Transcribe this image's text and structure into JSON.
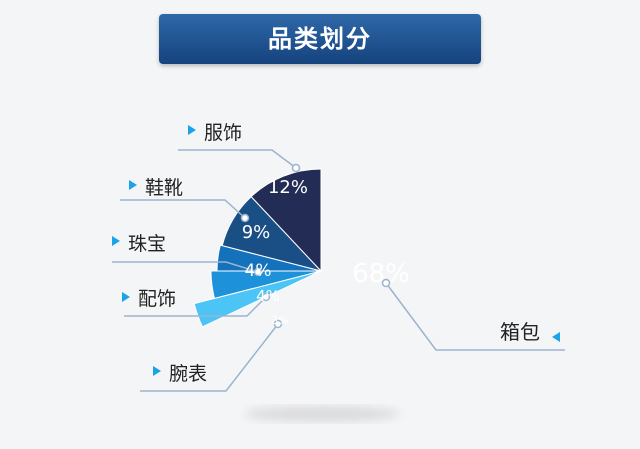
{
  "chart_data": {
    "type": "pie",
    "title": "品类划分",
    "slices": [
      {
        "name": "箱包",
        "value": 68,
        "label": "68%",
        "color": "#16a3e6"
      },
      {
        "name": "腕表",
        "value": 3,
        "label": "3%",
        "color": "#4cc4f5"
      },
      {
        "name": "配饰",
        "value": 4,
        "label": "4%",
        "color": "#1d91da"
      },
      {
        "name": "珠宝",
        "value": 4,
        "label": "4%",
        "color": "#1471bc"
      },
      {
        "name": "鞋靴",
        "value": 9,
        "label": "9%",
        "color": "#1a4f86"
      },
      {
        "name": "服饰",
        "value": 12,
        "label": "12%",
        "color": "#222c55"
      }
    ]
  },
  "colors": {
    "leader_line": "#9bb4ce",
    "marker": "#1aa3e6",
    "label_text": "#222222"
  }
}
